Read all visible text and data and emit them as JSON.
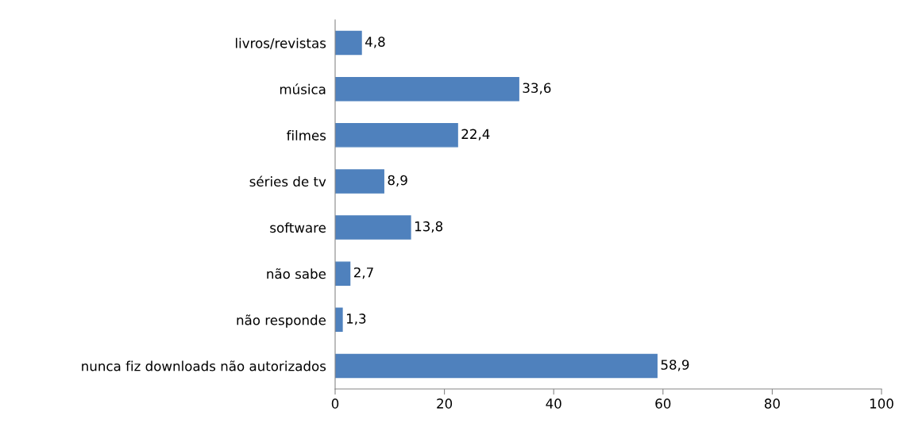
{
  "chart_data": {
    "type": "bar",
    "orientation": "horizontal",
    "categories": [
      "livros/revistas",
      "música",
      "filmes",
      "séries de tv",
      "software",
      "não sabe",
      "não responde",
      "nunca fiz downloads não autorizados"
    ],
    "values": [
      4.8,
      33.6,
      22.4,
      8.9,
      13.8,
      2.7,
      1.3,
      58.9
    ],
    "value_labels": [
      "4,8",
      "33,6",
      "22,4",
      "8,9",
      "13,8",
      "2,7",
      "1,3",
      "58,9"
    ],
    "color": "#4f81bd",
    "xlim": [
      0,
      100
    ],
    "xticks": [
      0,
      20,
      40,
      60,
      80,
      100
    ],
    "grid": false,
    "legend": false
  }
}
